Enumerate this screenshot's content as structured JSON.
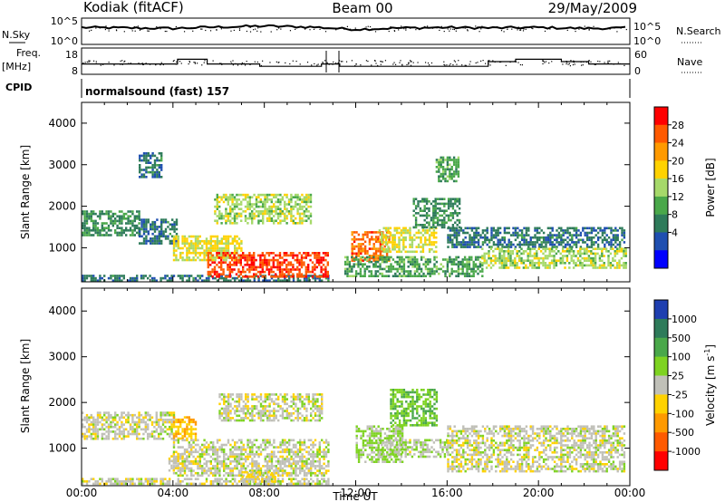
{
  "header": {
    "station": "Kodiak (fitACF)",
    "beam": "Beam 00",
    "date": "29/May/2009"
  },
  "noise_panel": {
    "left_label": "N.Sky",
    "right_label": "N.Search",
    "left_ticks": [
      "10^5",
      "10^0"
    ],
    "right_ticks": [
      "10^5",
      "10^0"
    ]
  },
  "freq_panel": {
    "left_label_1": "Freq.",
    "left_label_2": "[MHz]",
    "right_label": "Nave",
    "left_ticks": [
      "18",
      "8"
    ],
    "right_ticks": [
      "60",
      "0"
    ]
  },
  "cpid": {
    "label": "CPID",
    "program": "normalsound (fast) 157"
  },
  "axes": {
    "xlabel": "Time UT",
    "ylabel": "Slant Range [km]",
    "xticks": [
      "00:00",
      "04:00",
      "08:00",
      "12:00",
      "16:00",
      "20:00",
      "00:00"
    ],
    "yticks": [
      "1000",
      "2000",
      "3000",
      "4000"
    ]
  },
  "power_colorbar": {
    "label": "Power [dB]",
    "ticks": [
      "28",
      "24",
      "20",
      "16",
      "12",
      "8",
      "4"
    ],
    "colors": [
      "#ff0000",
      "#ff5a00",
      "#ff9a00",
      "#ffd200",
      "#a6d96a",
      "#4aa84a",
      "#2e7b5a",
      "#1f4fb0",
      "#0000ff"
    ]
  },
  "velocity_colorbar": {
    "label": "Velocity [m s",
    "label_sup": "-1",
    "label_end": "]",
    "ticks": [
      "1000",
      "500",
      "100",
      "25",
      "-25",
      "-100",
      "-500",
      "-1000"
    ],
    "colors": [
      "#1f3fb0",
      "#2e7b5a",
      "#4aa84a",
      "#7ed321",
      "#c0c0b8",
      "#ffd200",
      "#ff9a00",
      "#ff5a00",
      "#ff0000"
    ]
  },
  "chart_data": [
    {
      "type": "line",
      "title": "",
      "x_range_hours": [
        0,
        24
      ],
      "ylim_log10": [
        0,
        5
      ],
      "series": [
        {
          "x_hours": [
            0,
            2,
            4,
            6,
            8,
            10,
            12,
            14,
            16,
            18,
            20,
            22,
            24
          ],
          "values_log10": [
            3.4,
            3.3,
            3.2,
            3.5,
            3.7,
            3.5,
            3.0,
            3.3,
            3.4,
            3.3,
            3.4,
            3.2,
            3.3
          ]
        }
      ]
    },
    {
      "type": "line",
      "title": "",
      "x_range_hours": [
        0,
        24
      ],
      "ylim_mhz": [
        8,
        18
      ],
      "series": [
        {
          "x_hours": [
            0,
            4.2,
            4.2,
            5.5,
            5.5,
            7.8,
            7.8,
            10.5,
            10.5,
            11.3,
            11.3,
            17.8,
            17.8,
            19,
            19,
            21,
            21,
            22.2,
            22.2,
            24
          ],
          "values_mhz": [
            12,
            12,
            14,
            14,
            12,
            12,
            11,
            11,
            12,
            12,
            11,
            11,
            13,
            13,
            14,
            14,
            13,
            13,
            12,
            12
          ]
        }
      ]
    },
    {
      "type": "heatmap",
      "title": "",
      "xlabel": "Time UT",
      "ylabel": "Slant Range [km]",
      "x_range_hours": [
        0,
        24
      ],
      "ylim_km": [
        180,
        4500
      ],
      "colorbar": "Power [dB]",
      "colorbar_range": [
        0,
        32
      ],
      "regions": [
        {
          "t0": 0.0,
          "t1": 2.5,
          "r0": 1300,
          "r1": 1900,
          "value": 10
        },
        {
          "t0": 0.0,
          "t1": 10.8,
          "r0": 200,
          "r1": 350,
          "value": 8
        },
        {
          "t0": 2.5,
          "t1": 4.2,
          "r0": 1100,
          "r1": 1700,
          "value": 8
        },
        {
          "t0": 2.5,
          "t1": 3.5,
          "r0": 2700,
          "r1": 3300,
          "value": 8
        },
        {
          "t0": 4.0,
          "t1": 7.0,
          "r0": 700,
          "r1": 1300,
          "value": 18
        },
        {
          "t0": 5.5,
          "t1": 10.8,
          "r0": 300,
          "r1": 900,
          "value": 28
        },
        {
          "t0": 5.8,
          "t1": 10.0,
          "r0": 1600,
          "r1": 2300,
          "value": 16
        },
        {
          "t0": 11.8,
          "t1": 13.5,
          "r0": 700,
          "r1": 1400,
          "value": 26
        },
        {
          "t0": 11.5,
          "t1": 17.5,
          "r0": 300,
          "r1": 800,
          "value": 12
        },
        {
          "t0": 13.0,
          "t1": 15.5,
          "r0": 900,
          "r1": 1500,
          "value": 18
        },
        {
          "t0": 14.5,
          "t1": 16.5,
          "r0": 1500,
          "r1": 2200,
          "value": 10
        },
        {
          "t0": 15.5,
          "t1": 16.5,
          "r0": 2600,
          "r1": 3200,
          "value": 12
        },
        {
          "t0": 16.0,
          "t1": 23.8,
          "r0": 1000,
          "r1": 1500,
          "value": 8
        },
        {
          "t0": 17.5,
          "t1": 23.8,
          "r0": 500,
          "r1": 1000,
          "value": 16
        }
      ]
    },
    {
      "type": "heatmap",
      "title": "",
      "xlabel": "Time UT",
      "ylabel": "Slant Range [km]",
      "x_range_hours": [
        0,
        24
      ],
      "ylim_km": [
        180,
        4500
      ],
      "colorbar": "Velocity [m s-1]",
      "colorbar_range": [
        -1000,
        1000
      ],
      "regions": [
        {
          "t0": 0.0,
          "t1": 4.0,
          "r0": 1200,
          "r1": 1800,
          "value": 0
        },
        {
          "t0": 0.0,
          "t1": 10.8,
          "r0": 200,
          "r1": 350,
          "value": 0
        },
        {
          "t0": 4.0,
          "t1": 5.0,
          "r0": 1200,
          "r1": 1700,
          "value": -300
        },
        {
          "t0": 3.8,
          "t1": 4.6,
          "r0": 500,
          "r1": 900,
          "value": -100
        },
        {
          "t0": 4.0,
          "t1": 10.8,
          "r0": 400,
          "r1": 1200,
          "value": 0
        },
        {
          "t0": 6.0,
          "t1": 10.5,
          "r0": 1600,
          "r1": 2200,
          "value": 0
        },
        {
          "t0": 7.0,
          "t1": 8.5,
          "r0": 200,
          "r1": 500,
          "value": -100
        },
        {
          "t0": 12.0,
          "t1": 14.0,
          "r0": 700,
          "r1": 1500,
          "value": 150
        },
        {
          "t0": 13.5,
          "t1": 15.5,
          "r0": 1500,
          "r1": 2300,
          "value": 300
        },
        {
          "t0": 13.0,
          "t1": 16.0,
          "r0": 800,
          "r1": 1200,
          "value": 60
        },
        {
          "t0": 16.0,
          "t1": 23.8,
          "r0": 500,
          "r1": 1500,
          "value": 0
        }
      ]
    }
  ]
}
